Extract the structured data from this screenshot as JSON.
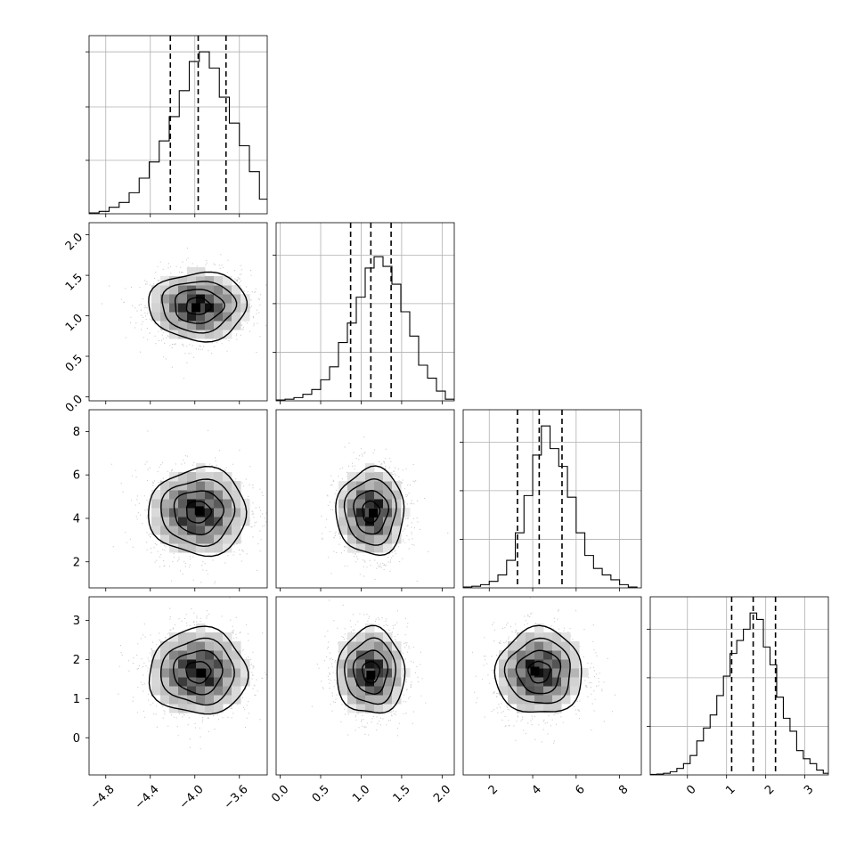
{
  "chart_data": {
    "type": "corner",
    "parameters": [
      {
        "range": [
          -4.95,
          -3.35
        ],
        "ticks": [
          -4.8,
          -4.4,
          -4.0,
          -3.6
        ],
        "tick_labels": [
          "−4.8",
          "−4.4",
          "−4.0",
          "−3.6"
        ],
        "quantiles": [
          -4.22,
          -3.97,
          -3.72
        ],
        "hist_bin_width": 0.09,
        "hist_peak": 100,
        "hist_y_ticks": [
          33,
          66,
          100
        ],
        "histogram": [
          [
            -4.95,
            0.5
          ],
          [
            -4.86,
            1.5
          ],
          [
            -4.77,
            4
          ],
          [
            -4.68,
            7
          ],
          [
            -4.59,
            13
          ],
          [
            -4.5,
            22
          ],
          [
            -4.41,
            32
          ],
          [
            -4.32,
            45
          ],
          [
            -4.23,
            60
          ],
          [
            -4.14,
            76
          ],
          [
            -4.05,
            94
          ],
          [
            -3.96,
            100
          ],
          [
            -3.87,
            90
          ],
          [
            -3.78,
            72
          ],
          [
            -3.69,
            56
          ],
          [
            -3.6,
            42
          ],
          [
            -3.51,
            26
          ],
          [
            -3.42,
            9
          ],
          [
            -3.33,
            2
          ]
        ]
      },
      {
        "range": [
          -0.05,
          2.15
        ],
        "ticks": [
          0.0,
          0.5,
          1.0,
          1.5,
          2.0
        ],
        "tick_labels": [
          "0.0",
          "0.5",
          "1.0",
          "1.5",
          "2.0"
        ],
        "quantiles": [
          0.87,
          1.12,
          1.37
        ],
        "hist_bin_width": 0.11,
        "hist_peak": 100,
        "hist_y_ticks": [
          30,
          60,
          90
        ],
        "histogram": [
          [
            -0.05,
            0.5
          ],
          [
            0.06,
            1
          ],
          [
            0.17,
            2
          ],
          [
            0.28,
            4
          ],
          [
            0.39,
            7
          ],
          [
            0.5,
            13
          ],
          [
            0.61,
            21
          ],
          [
            0.72,
            36
          ],
          [
            0.83,
            48
          ],
          [
            0.94,
            64
          ],
          [
            1.05,
            82
          ],
          [
            1.16,
            89
          ],
          [
            1.27,
            83
          ],
          [
            1.38,
            72
          ],
          [
            1.49,
            55
          ],
          [
            1.6,
            40
          ],
          [
            1.71,
            22
          ],
          [
            1.82,
            14
          ],
          [
            1.93,
            6
          ],
          [
            2.04,
            1
          ]
        ]
      },
      {
        "range": [
          0.8,
          9.0
        ],
        "ticks": [
          2,
          4,
          6,
          8
        ],
        "tick_labels": [
          "2",
          "4",
          "6",
          "8"
        ],
        "quantiles": [
          3.3,
          4.3,
          5.35
        ],
        "hist_bin_width": 0.4,
        "hist_peak": 100,
        "hist_y_ticks": [
          30,
          60,
          90
        ],
        "histogram": [
          [
            0.8,
            0.5
          ],
          [
            1.2,
            1
          ],
          [
            1.6,
            2
          ],
          [
            2.0,
            4
          ],
          [
            2.4,
            8
          ],
          [
            2.8,
            17
          ],
          [
            3.2,
            34
          ],
          [
            3.6,
            57
          ],
          [
            4.0,
            82
          ],
          [
            4.4,
            100
          ],
          [
            4.8,
            86
          ],
          [
            5.2,
            75
          ],
          [
            5.6,
            56
          ],
          [
            6.0,
            34
          ],
          [
            6.4,
            20
          ],
          [
            6.8,
            12
          ],
          [
            7.2,
            8
          ],
          [
            7.6,
            5
          ],
          [
            8.0,
            2
          ],
          [
            8.4,
            0.5
          ]
        ]
      },
      {
        "range": [
          -0.95,
          3.6
        ],
        "ticks": [
          0,
          1,
          2,
          3
        ],
        "tick_labels": [
          "0",
          "1",
          "2",
          "3"
        ],
        "quantiles": [
          1.13,
          1.68,
          2.25
        ],
        "hist_bin_width": 0.17,
        "hist_peak": 100,
        "hist_y_ticks": [
          30,
          60,
          90
        ],
        "histogram": [
          [
            -0.95,
            0.3
          ],
          [
            -0.78,
            0.5
          ],
          [
            -0.61,
            1
          ],
          [
            -0.44,
            2
          ],
          [
            -0.27,
            4
          ],
          [
            -0.1,
            7
          ],
          [
            0.07,
            12
          ],
          [
            0.24,
            21
          ],
          [
            0.41,
            29
          ],
          [
            0.58,
            37
          ],
          [
            0.75,
            49
          ],
          [
            0.92,
            61
          ],
          [
            1.09,
            75
          ],
          [
            1.26,
            83
          ],
          [
            1.43,
            90
          ],
          [
            1.6,
            100
          ],
          [
            1.77,
            96
          ],
          [
            1.94,
            79
          ],
          [
            2.11,
            68
          ],
          [
            2.28,
            48
          ],
          [
            2.45,
            35
          ],
          [
            2.62,
            27
          ],
          [
            2.79,
            15
          ],
          [
            2.96,
            10
          ],
          [
            3.13,
            7
          ],
          [
            3.3,
            3
          ],
          [
            3.47,
            1
          ]
        ]
      }
    ],
    "pairs": [
      {
        "row": 1,
        "col": 0,
        "mean": [
          -3.97,
          1.12
        ],
        "sd": [
          0.22,
          0.21
        ],
        "mode": [
          -3.99,
          1.1
        ]
      },
      {
        "row": 2,
        "col": 0,
        "mean": [
          -3.97,
          4.3
        ],
        "sd": [
          0.22,
          1.0
        ],
        "mode": [
          -3.96,
          4.35
        ]
      },
      {
        "row": 2,
        "col": 1,
        "mean": [
          1.12,
          4.3
        ],
        "sd": [
          0.21,
          1.0
        ],
        "mode": [
          1.15,
          4.25
        ]
      },
      {
        "row": 3,
        "col": 0,
        "mean": [
          -3.97,
          1.68
        ],
        "sd": [
          0.22,
          0.55
        ],
        "mode": [
          -3.94,
          1.65
        ]
      },
      {
        "row": 3,
        "col": 1,
        "mean": [
          1.12,
          1.68
        ],
        "sd": [
          0.21,
          0.55
        ],
        "mode": [
          1.12,
          1.6
        ]
      },
      {
        "row": 3,
        "col": 2,
        "mean": [
          4.3,
          1.68
        ],
        "sd": [
          1.0,
          0.55
        ],
        "mode": [
          4.1,
          1.7
        ]
      }
    ],
    "contour_levels_sigma": [
      0.5,
      1.0,
      1.5,
      2.0
    ],
    "grid": true,
    "title": "",
    "axis_labels": [
      "",
      "",
      "",
      ""
    ],
    "colors": {
      "hist": "#000000",
      "quantile_line": "#000000",
      "contour": "#000000",
      "density": "#000000",
      "points": "#a0a0a0",
      "grid": "#b0b0b0"
    }
  }
}
